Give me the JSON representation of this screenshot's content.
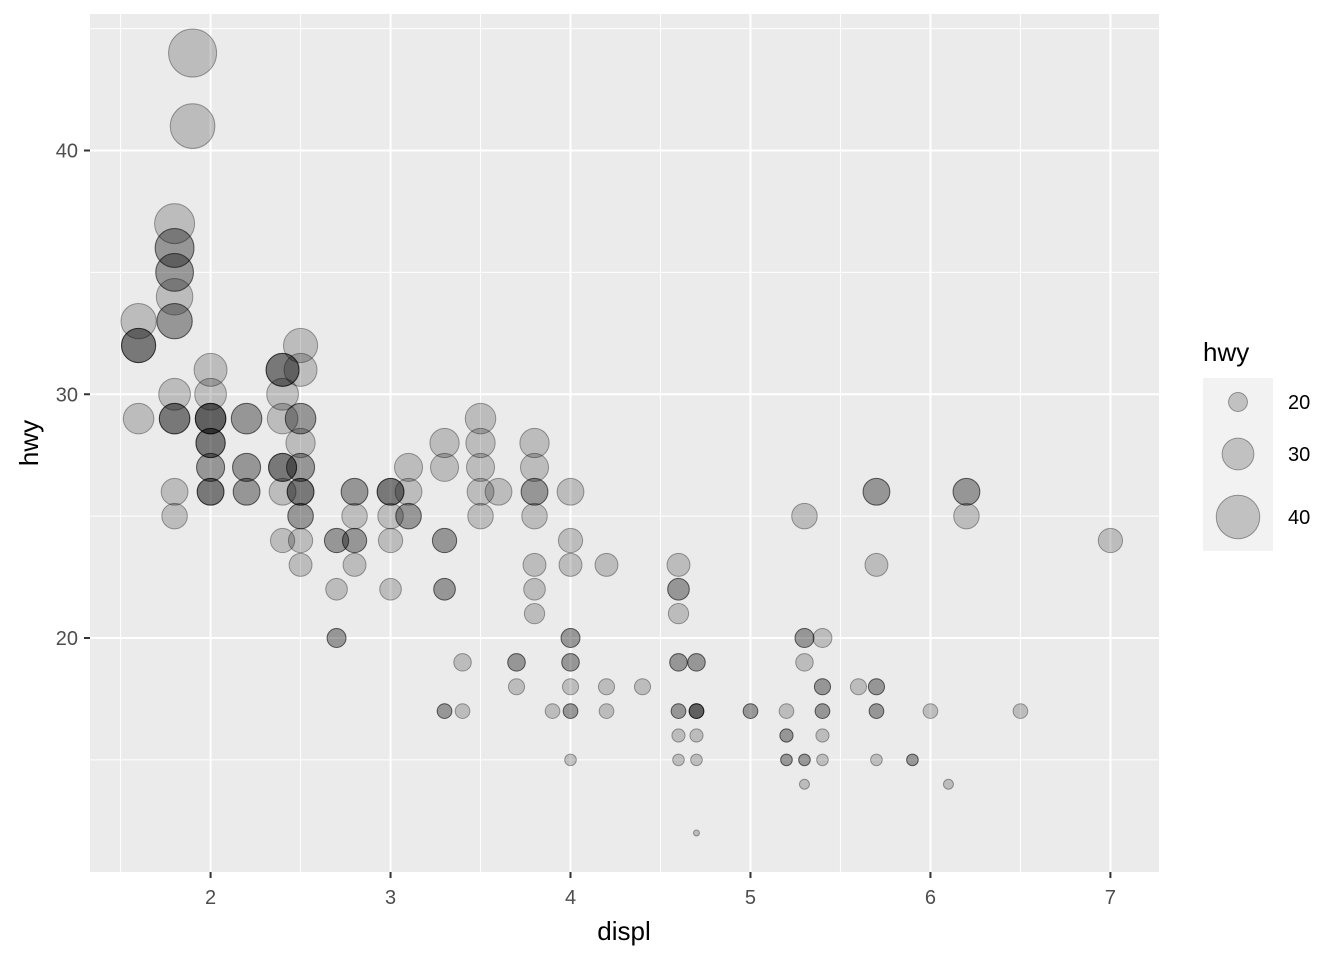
{
  "chart_data": {
    "type": "scatter",
    "title": "",
    "xlabel": "displ",
    "ylabel": "hwy",
    "xlim": [
      1.33,
      7.27
    ],
    "ylim": [
      10.4,
      45.6
    ],
    "x_ticks": [
      2,
      3,
      4,
      5,
      6,
      7
    ],
    "x_tick_labels": [
      "2",
      "3",
      "4",
      "5",
      "6",
      "7"
    ],
    "y_ticks": [
      20,
      30,
      40
    ],
    "y_tick_labels": [
      "20",
      "30",
      "40"
    ],
    "x_minor_ticks": [
      1.5,
      2.5,
      3.5,
      4.5,
      5.5,
      6.5
    ],
    "y_minor_ticks": [
      15,
      25,
      35,
      45
    ],
    "grid": true,
    "background": "#ebebeb",
    "point_color": "#000000",
    "point_alpha": 0.2,
    "size_encoding": "hwy",
    "legend": {
      "title": "hwy",
      "position": "right",
      "entries": [
        {
          "value": 20,
          "label": "20"
        },
        {
          "value": 30,
          "label": "30"
        },
        {
          "value": 40,
          "label": "40"
        }
      ]
    },
    "points": [
      [
        1.9,
        44
      ],
      [
        1.9,
        41
      ],
      [
        1.8,
        37
      ],
      [
        1.8,
        36
      ],
      [
        1.8,
        36
      ],
      [
        1.8,
        35
      ],
      [
        1.8,
        35
      ],
      [
        1.8,
        34
      ],
      [
        1.8,
        33
      ],
      [
        1.8,
        33
      ],
      [
        1.6,
        33
      ],
      [
        1.6,
        32
      ],
      [
        1.6,
        32
      ],
      [
        1.6,
        32
      ],
      [
        1.6,
        29
      ],
      [
        1.8,
        30
      ],
      [
        1.8,
        29
      ],
      [
        1.8,
        29
      ],
      [
        1.8,
        29
      ],
      [
        1.8,
        26
      ],
      [
        1.8,
        25
      ],
      [
        2.0,
        31
      ],
      [
        2.0,
        30
      ],
      [
        2.0,
        29
      ],
      [
        2.0,
        29
      ],
      [
        2.0,
        29
      ],
      [
        2.0,
        29
      ],
      [
        2.0,
        28
      ],
      [
        2.0,
        28
      ],
      [
        2.0,
        28
      ],
      [
        2.0,
        27
      ],
      [
        2.0,
        27
      ],
      [
        2.0,
        26
      ],
      [
        2.0,
        26
      ],
      [
        2.0,
        26
      ],
      [
        2.2,
        29
      ],
      [
        2.2,
        29
      ],
      [
        2.2,
        27
      ],
      [
        2.2,
        27
      ],
      [
        2.2,
        26
      ],
      [
        2.2,
        26
      ],
      [
        2.4,
        31
      ],
      [
        2.4,
        31
      ],
      [
        2.4,
        31
      ],
      [
        2.4,
        30
      ],
      [
        2.4,
        29
      ],
      [
        2.4,
        27
      ],
      [
        2.4,
        27
      ],
      [
        2.4,
        27
      ],
      [
        2.4,
        26
      ],
      [
        2.4,
        24
      ],
      [
        2.5,
        32
      ],
      [
        2.5,
        31
      ],
      [
        2.5,
        29
      ],
      [
        2.5,
        29
      ],
      [
        2.5,
        28
      ],
      [
        2.5,
        27
      ],
      [
        2.5,
        27
      ],
      [
        2.5,
        26
      ],
      [
        2.5,
        26
      ],
      [
        2.5,
        26
      ],
      [
        2.5,
        25
      ],
      [
        2.5,
        25
      ],
      [
        2.5,
        24
      ],
      [
        2.5,
        23
      ],
      [
        2.7,
        24
      ],
      [
        2.7,
        24
      ],
      [
        2.7,
        22
      ],
      [
        2.7,
        20
      ],
      [
        2.7,
        20
      ],
      [
        2.8,
        26
      ],
      [
        2.8,
        26
      ],
      [
        2.8,
        25
      ],
      [
        2.8,
        24
      ],
      [
        2.8,
        24
      ],
      [
        2.8,
        23
      ],
      [
        3.0,
        26
      ],
      [
        3.0,
        26
      ],
      [
        3.0,
        26
      ],
      [
        3.0,
        25
      ],
      [
        3.0,
        24
      ],
      [
        3.0,
        22
      ],
      [
        3.1,
        27
      ],
      [
        3.1,
        26
      ],
      [
        3.1,
        25
      ],
      [
        3.1,
        25
      ],
      [
        3.3,
        28
      ],
      [
        3.3,
        27
      ],
      [
        3.3,
        24
      ],
      [
        3.3,
        24
      ],
      [
        3.3,
        22
      ],
      [
        3.3,
        22
      ],
      [
        3.3,
        17
      ],
      [
        3.3,
        17
      ],
      [
        3.4,
        19
      ],
      [
        3.4,
        17
      ],
      [
        3.5,
        29
      ],
      [
        3.5,
        28
      ],
      [
        3.5,
        27
      ],
      [
        3.5,
        26
      ],
      [
        3.5,
        25
      ],
      [
        3.6,
        26
      ],
      [
        3.7,
        19
      ],
      [
        3.7,
        19
      ],
      [
        3.7,
        18
      ],
      [
        3.8,
        28
      ],
      [
        3.8,
        27
      ],
      [
        3.8,
        26
      ],
      [
        3.8,
        26
      ],
      [
        3.8,
        25
      ],
      [
        3.8,
        23
      ],
      [
        3.8,
        22
      ],
      [
        3.8,
        21
      ],
      [
        3.9,
        17
      ],
      [
        4.0,
        26
      ],
      [
        4.0,
        24
      ],
      [
        4.0,
        23
      ],
      [
        4.0,
        20
      ],
      [
        4.0,
        20
      ],
      [
        4.0,
        19
      ],
      [
        4.0,
        19
      ],
      [
        4.0,
        18
      ],
      [
        4.0,
        17
      ],
      [
        4.0,
        17
      ],
      [
        4.0,
        15
      ],
      [
        4.2,
        23
      ],
      [
        4.2,
        18
      ],
      [
        4.2,
        17
      ],
      [
        4.4,
        18
      ],
      [
        4.6,
        23
      ],
      [
        4.6,
        22
      ],
      [
        4.6,
        22
      ],
      [
        4.6,
        21
      ],
      [
        4.6,
        19
      ],
      [
        4.6,
        19
      ],
      [
        4.6,
        17
      ],
      [
        4.6,
        17
      ],
      [
        4.6,
        16
      ],
      [
        4.6,
        15
      ],
      [
        4.7,
        19
      ],
      [
        4.7,
        19
      ],
      [
        4.7,
        17
      ],
      [
        4.7,
        17
      ],
      [
        4.7,
        17
      ],
      [
        4.7,
        17
      ],
      [
        4.7,
        16
      ],
      [
        4.7,
        15
      ],
      [
        4.7,
        12
      ],
      [
        5.0,
        17
      ],
      [
        5.0,
        17
      ],
      [
        5.2,
        17
      ],
      [
        5.2,
        16
      ],
      [
        5.2,
        16
      ],
      [
        5.2,
        15
      ],
      [
        5.2,
        15
      ],
      [
        5.3,
        25
      ],
      [
        5.3,
        20
      ],
      [
        5.3,
        20
      ],
      [
        5.3,
        19
      ],
      [
        5.3,
        15
      ],
      [
        5.3,
        15
      ],
      [
        5.3,
        14
      ],
      [
        5.4,
        20
      ],
      [
        5.4,
        18
      ],
      [
        5.4,
        18
      ],
      [
        5.4,
        17
      ],
      [
        5.4,
        17
      ],
      [
        5.4,
        16
      ],
      [
        5.4,
        15
      ],
      [
        5.6,
        18
      ],
      [
        5.7,
        26
      ],
      [
        5.7,
        26
      ],
      [
        5.7,
        23
      ],
      [
        5.7,
        18
      ],
      [
        5.7,
        18
      ],
      [
        5.7,
        17
      ],
      [
        5.7,
        17
      ],
      [
        5.7,
        15
      ],
      [
        5.9,
        15
      ],
      [
        5.9,
        15
      ],
      [
        6.0,
        17
      ],
      [
        6.1,
        14
      ],
      [
        6.2,
        26
      ],
      [
        6.2,
        26
      ],
      [
        6.2,
        25
      ],
      [
        6.5,
        17
      ],
      [
        7.0,
        24
      ]
    ]
  }
}
